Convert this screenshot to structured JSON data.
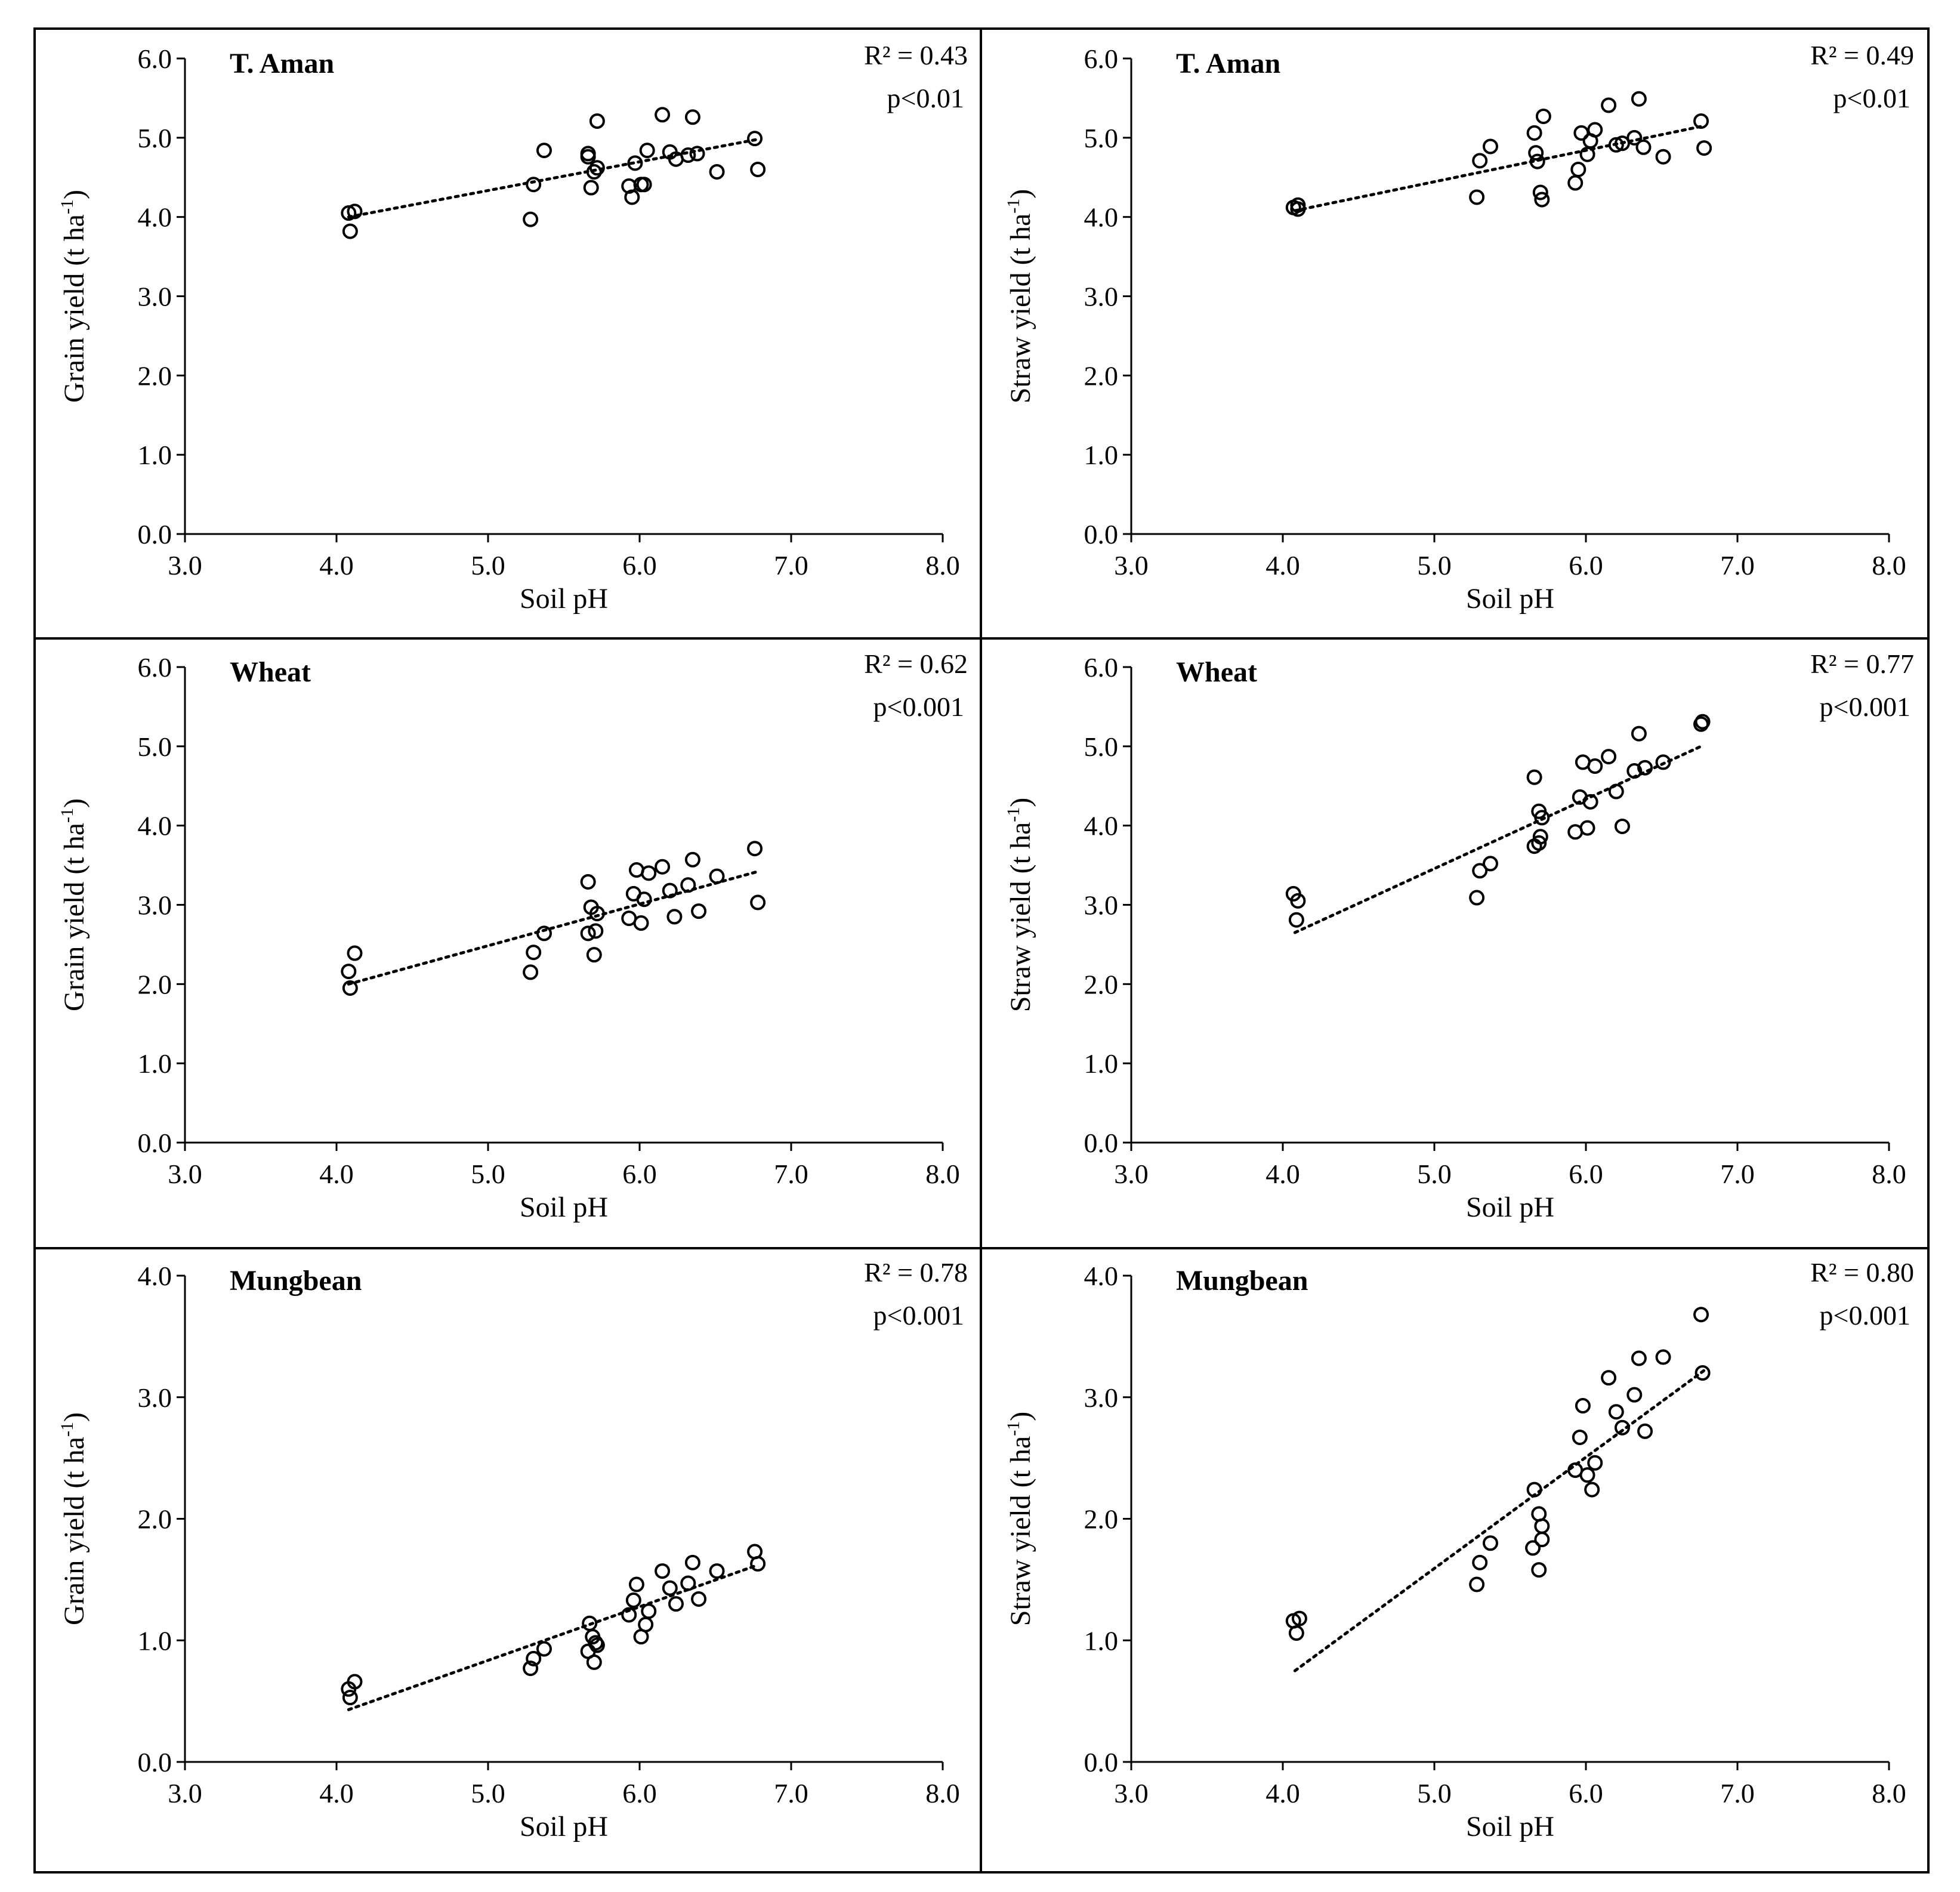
{
  "figure": {
    "background": "#ffffff",
    "ink": "#000000"
  },
  "chart_data": [
    {
      "id": "aman-grain",
      "type": "scatter",
      "title": "T. Aman",
      "xlabel": "Soil pH",
      "ylabel": "Grain yield (t ha-1)",
      "ylabel_main": "Grain yield (t ha",
      "ylabel_sup": "-1",
      "ylabel_end": ")",
      "xlim": [
        3.0,
        8.0
      ],
      "ylim": [
        0.0,
        6.0
      ],
      "xticks": [
        3.0,
        4.0,
        5.0,
        6.0,
        7.0,
        8.0
      ],
      "yticks": [
        0.0,
        1.0,
        2.0,
        3.0,
        4.0,
        5.0,
        6.0
      ],
      "xtick_labels": [
        "3.0",
        "4.0",
        "5.0",
        "6.0",
        "7.0",
        "8.0"
      ],
      "ytick_labels": [
        "0.0",
        "1.0",
        "2.0",
        "3.0",
        "4.0",
        "5.0",
        "6.0"
      ],
      "r2": "R² = 0.43",
      "p": "p<0.01",
      "trend": {
        "x": [
          4.08,
          6.78
        ],
        "y": [
          4.0,
          4.98
        ]
      },
      "points": [
        [
          4.08,
          4.05
        ],
        [
          4.12,
          4.07
        ],
        [
          4.09,
          3.82
        ],
        [
          5.28,
          3.97
        ],
        [
          5.3,
          4.41
        ],
        [
          5.37,
          4.84
        ],
        [
          5.66,
          4.76
        ],
        [
          5.66,
          4.8
        ],
        [
          5.68,
          4.37
        ],
        [
          5.7,
          4.57
        ],
        [
          5.72,
          5.21
        ],
        [
          5.72,
          4.62
        ],
        [
          5.93,
          4.39
        ],
        [
          5.95,
          4.25
        ],
        [
          5.97,
          4.68
        ],
        [
          6.01,
          4.41
        ],
        [
          6.03,
          4.41
        ],
        [
          6.05,
          4.84
        ],
        [
          6.15,
          5.29
        ],
        [
          6.2,
          4.82
        ],
        [
          6.24,
          4.73
        ],
        [
          6.32,
          4.78
        ],
        [
          6.35,
          5.26
        ],
        [
          6.38,
          4.8
        ],
        [
          6.51,
          4.57
        ],
        [
          6.76,
          4.99
        ],
        [
          6.78,
          4.6
        ]
      ]
    },
    {
      "id": "aman-straw",
      "type": "scatter",
      "title": "T. Aman",
      "xlabel": "Soil pH",
      "ylabel": "Straw yield (t ha-1)",
      "ylabel_main": "Straw yield (t ha",
      "ylabel_sup": "-1",
      "ylabel_end": ")",
      "xlim": [
        3.0,
        8.0
      ],
      "ylim": [
        0.0,
        6.0
      ],
      "xticks": [
        3.0,
        4.0,
        5.0,
        6.0,
        7.0,
        8.0
      ],
      "yticks": [
        0.0,
        1.0,
        2.0,
        3.0,
        4.0,
        5.0,
        6.0
      ],
      "xtick_labels": [
        "3.0",
        "4.0",
        "5.0",
        "6.0",
        "7.0",
        "8.0"
      ],
      "ytick_labels": [
        "0.0",
        "1.0",
        "2.0",
        "3.0",
        "4.0",
        "5.0",
        "6.0"
      ],
      "r2": "R² = 0.49",
      "p": "p<0.01",
      "trend": {
        "x": [
          4.08,
          6.78
        ],
        "y": [
          4.08,
          5.15
        ]
      },
      "points": [
        [
          4.07,
          4.12
        ],
        [
          4.1,
          4.15
        ],
        [
          4.1,
          4.1
        ],
        [
          5.28,
          4.25
        ],
        [
          5.3,
          4.71
        ],
        [
          5.37,
          4.89
        ],
        [
          5.66,
          5.06
        ],
        [
          5.67,
          4.81
        ],
        [
          5.68,
          4.7
        ],
        [
          5.7,
          4.31
        ],
        [
          5.71,
          4.22
        ],
        [
          5.72,
          5.27
        ],
        [
          5.93,
          4.43
        ],
        [
          5.95,
          4.6
        ],
        [
          5.97,
          5.06
        ],
        [
          6.01,
          4.79
        ],
        [
          6.03,
          4.96
        ],
        [
          6.06,
          5.1
        ],
        [
          6.15,
          5.41
        ],
        [
          6.2,
          4.91
        ],
        [
          6.24,
          4.93
        ],
        [
          6.32,
          5.0
        ],
        [
          6.35,
          5.49
        ],
        [
          6.38,
          4.88
        ],
        [
          6.51,
          4.76
        ],
        [
          6.76,
          5.21
        ],
        [
          6.78,
          4.87
        ]
      ]
    },
    {
      "id": "wheat-grain",
      "type": "scatter",
      "title": "Wheat",
      "xlabel": "Soil pH",
      "ylabel": "Grain yield (t ha-1)",
      "ylabel_main": "Grain yield (t ha",
      "ylabel_sup": "-1",
      "ylabel_end": ")",
      "xlim": [
        3.0,
        8.0
      ],
      "ylim": [
        0.0,
        6.0
      ],
      "xticks": [
        3.0,
        4.0,
        5.0,
        6.0,
        7.0,
        8.0
      ],
      "yticks": [
        0.0,
        1.0,
        2.0,
        3.0,
        4.0,
        5.0,
        6.0
      ],
      "xtick_labels": [
        "3.0",
        "4.0",
        "5.0",
        "6.0",
        "7.0",
        "8.0"
      ],
      "ytick_labels": [
        "0.0",
        "1.0",
        "2.0",
        "3.0",
        "4.0",
        "5.0",
        "6.0"
      ],
      "r2": "R² = 0.62",
      "p": "p<0.001",
      "trend": {
        "x": [
          4.08,
          6.78
        ],
        "y": [
          2.0,
          3.42
        ]
      },
      "points": [
        [
          4.08,
          2.16
        ],
        [
          4.12,
          2.39
        ],
        [
          4.09,
          1.95
        ],
        [
          5.28,
          2.15
        ],
        [
          5.3,
          2.4
        ],
        [
          5.37,
          2.64
        ],
        [
          5.66,
          3.29
        ],
        [
          5.66,
          2.64
        ],
        [
          5.68,
          2.97
        ],
        [
          5.7,
          2.37
        ],
        [
          5.71,
          2.67
        ],
        [
          5.72,
          2.89
        ],
        [
          5.93,
          2.83
        ],
        [
          5.96,
          3.14
        ],
        [
          5.98,
          3.44
        ],
        [
          6.01,
          2.77
        ],
        [
          6.03,
          3.07
        ],
        [
          6.06,
          3.4
        ],
        [
          6.15,
          3.48
        ],
        [
          6.2,
          3.18
        ],
        [
          6.23,
          2.85
        ],
        [
          6.32,
          3.25
        ],
        [
          6.35,
          3.57
        ],
        [
          6.39,
          2.92
        ],
        [
          6.51,
          3.36
        ],
        [
          6.76,
          3.71
        ],
        [
          6.78,
          3.03
        ]
      ]
    },
    {
      "id": "wheat-straw",
      "type": "scatter",
      "title": "Wheat",
      "xlabel": "Soil pH",
      "ylabel": "Straw yield (t ha-1)",
      "ylabel_main": "Straw yield (t ha",
      "ylabel_sup": "-1",
      "ylabel_end": ")",
      "xlim": [
        3.0,
        8.0
      ],
      "ylim": [
        0.0,
        6.0
      ],
      "xticks": [
        3.0,
        4.0,
        5.0,
        6.0,
        7.0,
        8.0
      ],
      "yticks": [
        0.0,
        1.0,
        2.0,
        3.0,
        4.0,
        5.0,
        6.0
      ],
      "xtick_labels": [
        "3.0",
        "4.0",
        "5.0",
        "6.0",
        "7.0",
        "8.0"
      ],
      "ytick_labels": [
        "0.0",
        "1.0",
        "2.0",
        "3.0",
        "4.0",
        "5.0",
        "6.0"
      ],
      "r2": "R² = 0.77",
      "p": "p<0.001",
      "trend": {
        "x": [
          4.08,
          6.76
        ],
        "y": [
          2.65,
          5.0
        ]
      },
      "points": [
        [
          4.07,
          3.14
        ],
        [
          4.1,
          3.05
        ],
        [
          4.09,
          2.81
        ],
        [
          5.28,
          3.09
        ],
        [
          5.3,
          3.43
        ],
        [
          5.37,
          3.52
        ],
        [
          5.66,
          4.61
        ],
        [
          5.66,
          3.74
        ],
        [
          5.69,
          4.18
        ],
        [
          5.69,
          3.78
        ],
        [
          5.7,
          3.86
        ],
        [
          5.71,
          4.1
        ],
        [
          5.93,
          3.92
        ],
        [
          5.96,
          4.36
        ],
        [
          5.98,
          4.8
        ],
        [
          6.01,
          3.97
        ],
        [
          6.03,
          4.3
        ],
        [
          6.06,
          4.75
        ],
        [
          6.15,
          4.87
        ],
        [
          6.2,
          4.43
        ],
        [
          6.24,
          3.99
        ],
        [
          6.32,
          4.69
        ],
        [
          6.35,
          5.16
        ],
        [
          6.39,
          4.73
        ],
        [
          6.51,
          4.8
        ],
        [
          6.76,
          5.28
        ],
        [
          6.77,
          5.31
        ]
      ]
    },
    {
      "id": "mung-grain",
      "type": "scatter",
      "title": "Mungbean",
      "xlabel": "Soil pH",
      "ylabel": "Grain yield (t ha-1)",
      "ylabel_main": "Grain yield (t ha",
      "ylabel_sup": "-1",
      "ylabel_end": ")",
      "xlim": [
        3.0,
        8.0
      ],
      "ylim": [
        0.0,
        4.0
      ],
      "xticks": [
        3.0,
        4.0,
        5.0,
        6.0,
        7.0,
        8.0
      ],
      "yticks": [
        0.0,
        1.0,
        2.0,
        3.0,
        4.0
      ],
      "xtick_labels": [
        "3.0",
        "4.0",
        "5.0",
        "6.0",
        "7.0",
        "8.0"
      ],
      "ytick_labels": [
        "0.0",
        "1.0",
        "2.0",
        "3.0",
        "4.0"
      ],
      "r2": "R² = 0.78",
      "p": "p<0.001",
      "trend": {
        "x": [
          4.08,
          6.78
        ],
        "y": [
          0.43,
          1.62
        ]
      },
      "points": [
        [
          4.08,
          0.6
        ],
        [
          4.12,
          0.66
        ],
        [
          4.09,
          0.53
        ],
        [
          5.28,
          0.77
        ],
        [
          5.3,
          0.85
        ],
        [
          5.37,
          0.93
        ],
        [
          5.67,
          1.14
        ],
        [
          5.66,
          0.91
        ],
        [
          5.69,
          1.03
        ],
        [
          5.7,
          0.82
        ],
        [
          5.71,
          0.98
        ],
        [
          5.72,
          0.96
        ],
        [
          5.93,
          1.21
        ],
        [
          5.96,
          1.33
        ],
        [
          5.98,
          1.46
        ],
        [
          6.01,
          1.03
        ],
        [
          6.04,
          1.13
        ],
        [
          6.06,
          1.24
        ],
        [
          6.15,
          1.57
        ],
        [
          6.2,
          1.43
        ],
        [
          6.24,
          1.3
        ],
        [
          6.32,
          1.47
        ],
        [
          6.35,
          1.64
        ],
        [
          6.39,
          1.34
        ],
        [
          6.51,
          1.57
        ],
        [
          6.76,
          1.73
        ],
        [
          6.78,
          1.63
        ]
      ]
    },
    {
      "id": "mung-straw",
      "type": "scatter",
      "title": "Mungbean",
      "xlabel": "Soil pH",
      "ylabel": "Straw yield (t ha-1)",
      "ylabel_main": "Straw yield (t ha",
      "ylabel_sup": "-1",
      "ylabel_end": ")",
      "xlim": [
        3.0,
        8.0
      ],
      "ylim": [
        0.0,
        4.0
      ],
      "xticks": [
        3.0,
        4.0,
        5.0,
        6.0,
        7.0,
        8.0
      ],
      "yticks": [
        0.0,
        1.0,
        2.0,
        3.0,
        4.0
      ],
      "xtick_labels": [
        "3.0",
        "4.0",
        "5.0",
        "6.0",
        "7.0",
        "8.0"
      ],
      "ytick_labels": [
        "0.0",
        "1.0",
        "2.0",
        "3.0",
        "4.0"
      ],
      "r2": "R² = 0.80",
      "p": "p<0.001",
      "trend": {
        "x": [
          4.08,
          6.78
        ],
        "y": [
          0.75,
          3.22
        ]
      },
      "points": [
        [
          4.07,
          1.16
        ],
        [
          4.11,
          1.18
        ],
        [
          4.09,
          1.06
        ],
        [
          5.28,
          1.46
        ],
        [
          5.3,
          1.64
        ],
        [
          5.37,
          1.8
        ],
        [
          5.66,
          2.24
        ],
        [
          5.65,
          1.76
        ],
        [
          5.69,
          2.04
        ],
        [
          5.69,
          1.58
        ],
        [
          5.71,
          1.83
        ],
        [
          5.71,
          1.94
        ],
        [
          5.93,
          2.4
        ],
        [
          5.96,
          2.67
        ],
        [
          5.98,
          2.93
        ],
        [
          6.01,
          2.36
        ],
        [
          6.04,
          2.24
        ],
        [
          6.06,
          2.46
        ],
        [
          6.15,
          3.16
        ],
        [
          6.2,
          2.88
        ],
        [
          6.24,
          2.75
        ],
        [
          6.32,
          3.02
        ],
        [
          6.35,
          3.32
        ],
        [
          6.39,
          2.72
        ],
        [
          6.51,
          3.33
        ],
        [
          6.76,
          3.68
        ],
        [
          6.77,
          3.2
        ]
      ]
    }
  ]
}
